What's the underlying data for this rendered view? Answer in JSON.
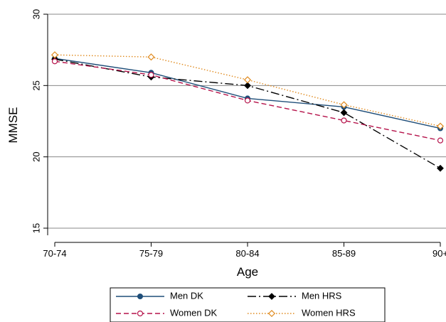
{
  "chart_data": {
    "type": "line",
    "title": "",
    "xlabel": "Age",
    "ylabel": "MMSE",
    "categories": [
      "70-74",
      "75-79",
      "80-84",
      "85-89",
      "90+"
    ],
    "ylim": [
      14,
      30.2
    ],
    "yticks": [
      15,
      20,
      25,
      30
    ],
    "grid": true,
    "legend_position": "bottom",
    "series": [
      {
        "name": "Men DK",
        "values": [
          26.9,
          25.9,
          24.1,
          23.5,
          22.0
        ],
        "color": "#1f4e79",
        "dash": "solid",
        "marker": "filled-circle"
      },
      {
        "name": "Men HRS",
        "values": [
          26.85,
          25.6,
          25.0,
          23.1,
          19.2
        ],
        "color": "#000000",
        "dash": "dash-dot",
        "marker": "filled-diamond"
      },
      {
        "name": "Women DK",
        "values": [
          26.7,
          25.75,
          23.95,
          22.55,
          21.15
        ],
        "color": "#b5124a",
        "dash": "dash",
        "marker": "hollow-circle"
      },
      {
        "name": "Women HRS",
        "values": [
          27.15,
          27.0,
          25.4,
          23.65,
          22.15
        ],
        "color": "#e08a1e",
        "dash": "dot",
        "marker": "hollow-diamond"
      }
    ]
  }
}
